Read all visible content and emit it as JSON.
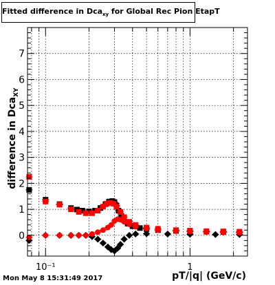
{
  "title": {
    "prefix": "Fitted difference in Dca",
    "sub": "xy",
    "suffix": " for Global Rec Pion EtapT"
  },
  "footer": "Mon May  8 15:31:49 2017",
  "xlabel": "pT/|q| (GeV/c)",
  "ylabel": {
    "prefix": "difference in Dca",
    "sub": "XY"
  },
  "chart_data": {
    "type": "scatter",
    "x_scale": "log",
    "xlim": [
      0.075,
      2.5
    ],
    "ylim": [
      -0.8,
      8.0
    ],
    "grid": true,
    "x_ticks_major": [
      {
        "value": 0.1,
        "label": "10⁻¹"
      },
      {
        "value": 1,
        "label": "1"
      }
    ],
    "y_ticks": [
      {
        "value": 0,
        "label": "0"
      },
      {
        "value": 1,
        "label": "1"
      },
      {
        "value": 2,
        "label": "2"
      },
      {
        "value": 3,
        "label": "3"
      },
      {
        "value": 4,
        "label": "4"
      },
      {
        "value": 5,
        "label": "5"
      },
      {
        "value": 6,
        "label": "6"
      },
      {
        "value": 7,
        "label": "7"
      }
    ],
    "series": [
      {
        "color": "#000000",
        "marker": "square",
        "points": [
          [
            0.077,
            1.75
          ],
          [
            0.1,
            1.37
          ],
          [
            0.125,
            1.2
          ],
          [
            0.15,
            1.05
          ],
          [
            0.165,
            0.99
          ],
          [
            0.18,
            0.95
          ],
          [
            0.2,
            0.92
          ],
          [
            0.22,
            0.95
          ],
          [
            0.24,
            1.05
          ],
          [
            0.26,
            1.2
          ],
          [
            0.275,
            1.3
          ],
          [
            0.29,
            1.32
          ],
          [
            0.3,
            1.28
          ],
          [
            0.31,
            1.15
          ],
          [
            0.32,
            0.95
          ],
          [
            0.335,
            0.75
          ],
          [
            0.35,
            0.58
          ],
          [
            0.37,
            0.45
          ],
          [
            0.4,
            0.35
          ],
          [
            0.45,
            0.28
          ],
          [
            0.5,
            0.24
          ],
          [
            0.6,
            0.2
          ],
          [
            0.8,
            0.17
          ],
          [
            1.0,
            0.15
          ],
          [
            1.3,
            0.14
          ],
          [
            1.7,
            0.13
          ],
          [
            2.2,
            0.12
          ]
        ]
      },
      {
        "color": "#000000",
        "marker": "diamond",
        "points": [
          [
            0.077,
            -0.2
          ],
          [
            0.1,
            0.0
          ],
          [
            0.125,
            0.0
          ],
          [
            0.15,
            0.0
          ],
          [
            0.17,
            0.0
          ],
          [
            0.19,
            0.0
          ],
          [
            0.21,
            -0.05
          ],
          [
            0.23,
            -0.15
          ],
          [
            0.25,
            -0.3
          ],
          [
            0.27,
            -0.45
          ],
          [
            0.285,
            -0.55
          ],
          [
            0.3,
            -0.6
          ],
          [
            0.315,
            -0.5
          ],
          [
            0.33,
            -0.35
          ],
          [
            0.35,
            -0.15
          ],
          [
            0.38,
            0.0
          ],
          [
            0.42,
            0.05
          ],
          [
            0.5,
            0.06
          ],
          [
            0.7,
            0.05
          ],
          [
            1.0,
            0.04
          ],
          [
            1.5,
            0.03
          ],
          [
            2.2,
            0.03
          ]
        ]
      },
      {
        "color": "#ff0000",
        "marker": "square",
        "points": [
          [
            0.077,
            2.25
          ],
          [
            0.1,
            1.3
          ],
          [
            0.125,
            1.18
          ],
          [
            0.15,
            1.0
          ],
          [
            0.17,
            0.9
          ],
          [
            0.19,
            0.85
          ],
          [
            0.21,
            0.85
          ],
          [
            0.23,
            0.95
          ],
          [
            0.25,
            1.1
          ],
          [
            0.265,
            1.22
          ],
          [
            0.28,
            1.25
          ],
          [
            0.295,
            1.22
          ],
          [
            0.31,
            1.1
          ],
          [
            0.33,
            0.9
          ],
          [
            0.35,
            0.7
          ],
          [
            0.38,
            0.52
          ],
          [
            0.42,
            0.4
          ],
          [
            0.5,
            0.3
          ],
          [
            0.6,
            0.25
          ],
          [
            0.8,
            0.2
          ],
          [
            1.0,
            0.18
          ],
          [
            1.3,
            0.16
          ],
          [
            1.7,
            0.15
          ],
          [
            2.2,
            0.14
          ]
        ]
      },
      {
        "color": "#ff0000",
        "marker": "circle",
        "points": [
          [
            0.077,
            -0.08
          ],
          [
            0.1,
            0.0
          ],
          [
            0.125,
            0.0
          ],
          [
            0.15,
            0.0
          ],
          [
            0.17,
            0.0
          ],
          [
            0.19,
            0.0
          ],
          [
            0.21,
            0.05
          ],
          [
            0.23,
            0.12
          ],
          [
            0.25,
            0.2
          ],
          [
            0.27,
            0.3
          ],
          [
            0.285,
            0.4
          ],
          [
            0.3,
            0.55
          ],
          [
            0.315,
            0.62
          ],
          [
            0.33,
            0.6
          ],
          [
            0.35,
            0.52
          ],
          [
            0.38,
            0.42
          ],
          [
            0.42,
            0.33
          ],
          [
            0.5,
            0.26
          ],
          [
            0.6,
            0.2
          ],
          [
            0.8,
            0.16
          ],
          [
            1.0,
            0.14
          ],
          [
            1.3,
            0.12
          ],
          [
            1.7,
            0.11
          ],
          [
            2.2,
            0.1
          ]
        ]
      }
    ]
  }
}
